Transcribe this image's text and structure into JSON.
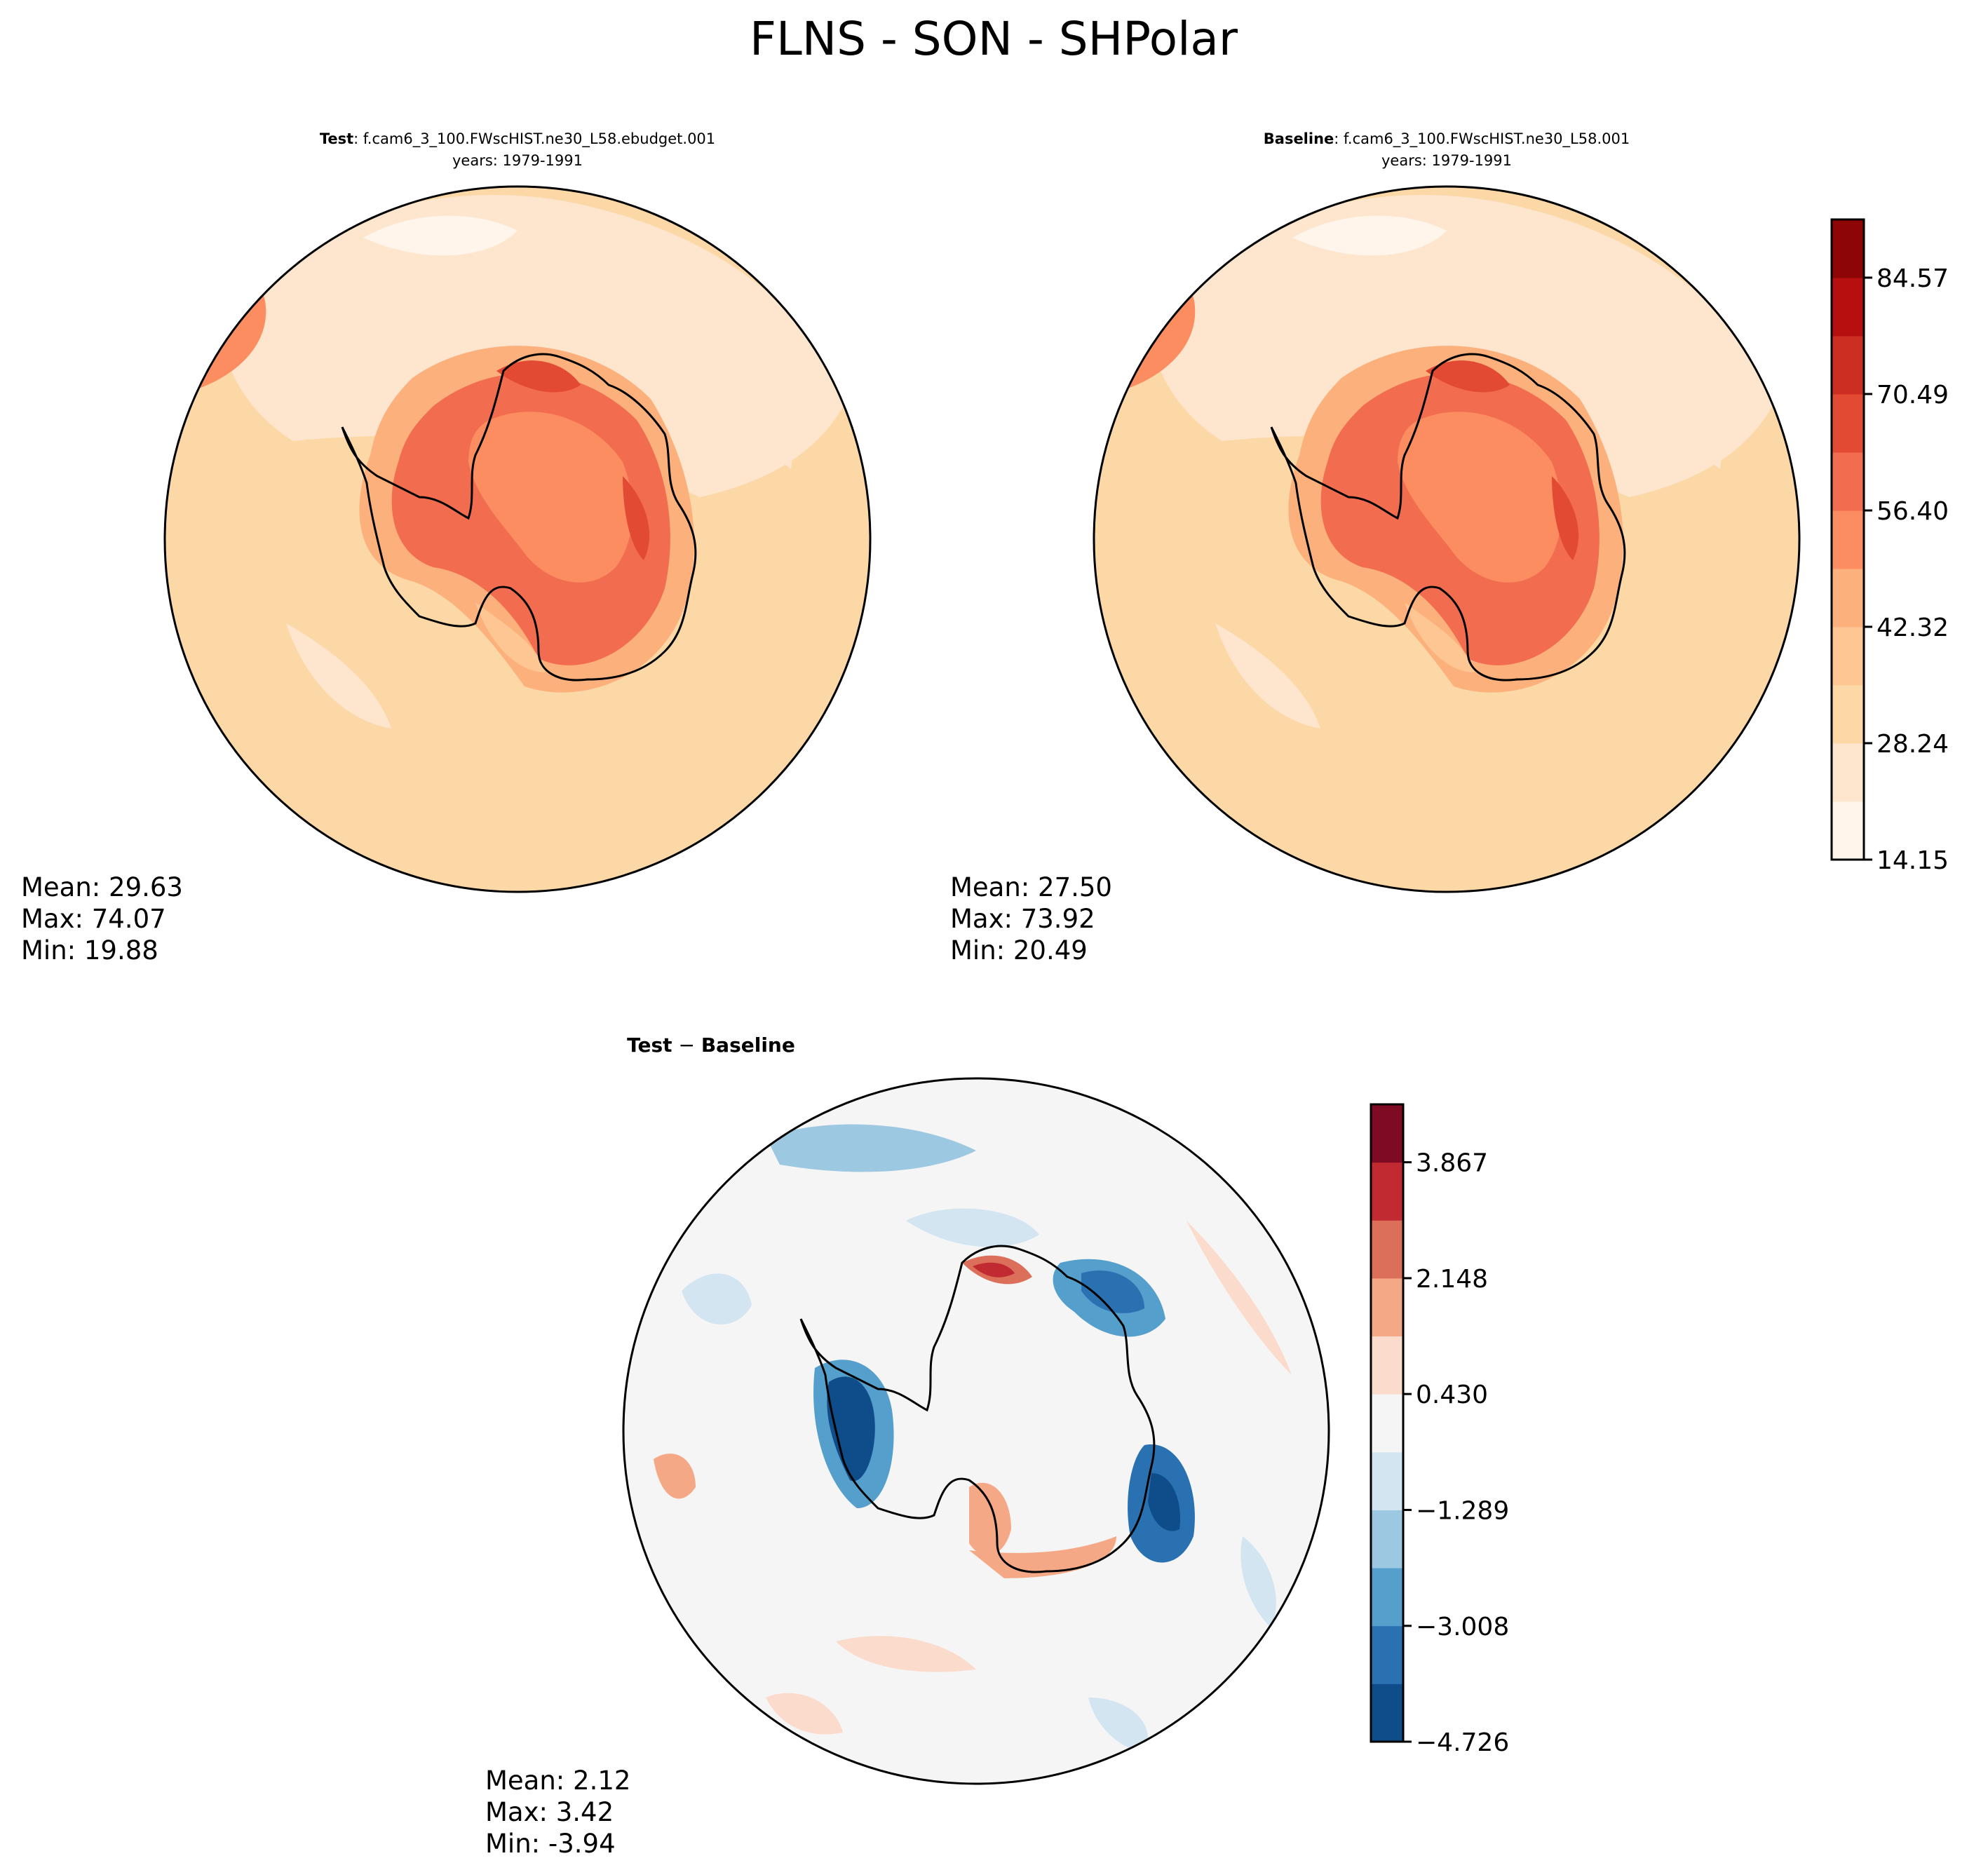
{
  "chart_data": {
    "type": "heatmap",
    "title": "FLNS - SON - SHPolar",
    "projection": "south-polar-stereographic",
    "panels": [
      {
        "id": "test",
        "title_bold": "Test",
        "title_rest": ": f.cam6_3_100.FWscHIST.ne30_L58.ebudget.001",
        "subtitle": "years: 1979-1991",
        "stats": {
          "mean": "Mean: 29.63",
          "max": "Max: 74.07",
          "min": "Min: 19.88"
        }
      },
      {
        "id": "baseline",
        "title_bold": "Baseline",
        "title_rest": ": f.cam6_3_100.FWscHIST.ne30_L58.001",
        "subtitle": "years: 1979-1991",
        "stats": {
          "mean": "Mean: 27.50",
          "max": "Max: 73.92",
          "min": "Min: 20.49"
        }
      },
      {
        "id": "diff",
        "title_bold": "Test",
        "title_mid": " − ",
        "title_bold2": "Baseline",
        "stats": {
          "mean": "Mean:  2.12",
          "max": "Max:  3.42",
          "min": "Min: -3.94"
        }
      }
    ],
    "colorbars": [
      {
        "id": "main",
        "ticks": [
          14.15,
          28.24,
          42.32,
          56.4,
          70.49,
          84.57
        ],
        "tick_labels": [
          "14.15",
          "28.24",
          "42.32",
          "56.40",
          "70.49",
          "84.57"
        ],
        "range": [
          14.15,
          91.61
        ],
        "colors": [
          "#fff5eb",
          "#fee6ce",
          "#fdd8a7",
          "#fdc692",
          "#fcb07c",
          "#fb8d61",
          "#f26c4f",
          "#e34a33",
          "#cc2f22",
          "#b70f0f",
          "#8e0505"
        ]
      },
      {
        "id": "diff",
        "ticks": [
          -4.726,
          -3.008,
          -1.289,
          0.43,
          2.148,
          3.867
        ],
        "tick_labels": [
          "−4.726",
          "−3.008",
          "−1.289",
          "0.430",
          "2.148",
          "3.867"
        ],
        "range": [
          -4.726,
          4.726
        ],
        "colors": [
          "#0e4c8a",
          "#2a71b2",
          "#549fcb",
          "#9cc8e1",
          "#d3e5f1",
          "#f5f5f5",
          "#fbdccc",
          "#f5a886",
          "#dc6f5a",
          "#c02a30",
          "#7f0a24"
        ]
      }
    ]
  }
}
